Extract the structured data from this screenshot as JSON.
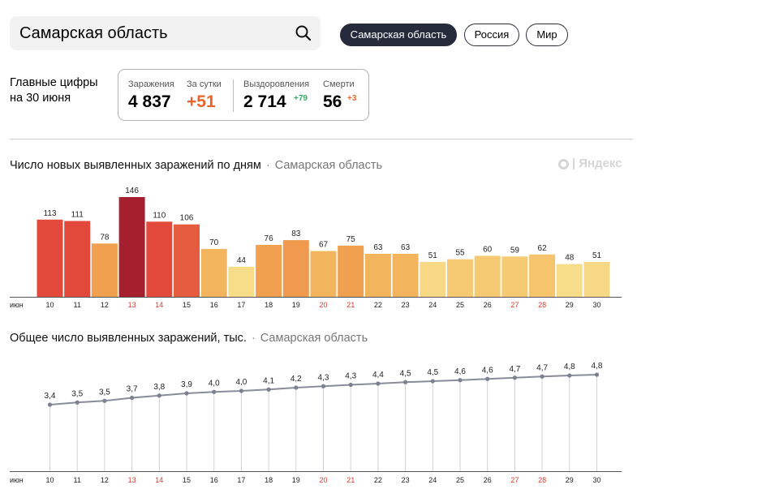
{
  "search": {
    "value": "Самарская область"
  },
  "regions": [
    {
      "label": "Самарская область",
      "active": true
    },
    {
      "label": "Россия",
      "active": false
    },
    {
      "label": "Мир",
      "active": false
    }
  ],
  "headline": {
    "line1": "Главные цифры",
    "line2": "на 30 июня"
  },
  "stats": {
    "infections_label": "Заражения",
    "infections_value": "4 837",
    "daily_label": "За сутки",
    "daily_value": "+51",
    "recovered_label": "Выздоровления",
    "recovered_value": "2 714",
    "recovered_delta": "+79",
    "deaths_label": "Смерти",
    "deaths_value": "56",
    "deaths_delta": "+3"
  },
  "watermark": "Яндекс",
  "colors": {
    "red_day": "#d93a2b",
    "recovered_delta": "#3aa66a",
    "orange": "#e8652a",
    "line": "#8a8d99"
  },
  "chart_data": [
    {
      "type": "bar",
      "title": "Число новых выявленных заражений по дням",
      "subtitle": "Самарская область",
      "month_label": "июн",
      "categories": [
        "10",
        "11",
        "12",
        "13",
        "14",
        "15",
        "16",
        "17",
        "18",
        "19",
        "20",
        "21",
        "22",
        "23",
        "24",
        "25",
        "26",
        "27",
        "28",
        "29",
        "30"
      ],
      "values": [
        113,
        111,
        78,
        146,
        110,
        106,
        70,
        44,
        76,
        83,
        67,
        75,
        63,
        63,
        51,
        55,
        60,
        59,
        62,
        48,
        51
      ],
      "highlight_days": [
        "13",
        "14",
        "20",
        "21",
        "27",
        "28"
      ],
      "bar_colors": [
        "#e3493a",
        "#e3493a",
        "#f0a04f",
        "#a61f2f",
        "#e3493a",
        "#e55c3e",
        "#f2b55e",
        "#f7dd8a",
        "#f0a04f",
        "#ef9a4f",
        "#f2b55e",
        "#f0a04f",
        "#f2b55e",
        "#f2b55e",
        "#f7d885",
        "#f5ca73",
        "#f5ca73",
        "#f5ca73",
        "#f5c46c",
        "#f7dd8a",
        "#f7d885"
      ],
      "ylim": [
        0,
        146
      ]
    },
    {
      "type": "line",
      "title": "Общее число выявленных заражений, тыс.",
      "subtitle": "Самарская область",
      "month_label": "июн",
      "categories": [
        "10",
        "11",
        "12",
        "13",
        "14",
        "15",
        "16",
        "17",
        "18",
        "19",
        "20",
        "21",
        "22",
        "23",
        "24",
        "25",
        "26",
        "27",
        "28",
        "29",
        "30"
      ],
      "values": [
        3.4,
        3.5,
        3.5,
        3.7,
        3.8,
        3.9,
        4.0,
        4.0,
        4.1,
        4.2,
        4.3,
        4.3,
        4.4,
        4.5,
        4.5,
        4.6,
        4.6,
        4.7,
        4.7,
        4.8,
        4.8
      ],
      "value_labels": [
        "3,4",
        "3,5",
        "3,5",
        "3,7",
        "3,8",
        "3,9",
        "4,0",
        "4,0",
        "4,1",
        "4,2",
        "4,3",
        "4,3",
        "4,4",
        "4,5",
        "4,5",
        "4,6",
        "4,6",
        "4,7",
        "4,7",
        "4,8",
        "4,8"
      ],
      "highlight_days": [
        "13",
        "14",
        "20",
        "21",
        "27",
        "28"
      ],
      "exact_values": [
        3.36,
        3.47,
        3.55,
        3.7,
        3.81,
        3.92,
        3.99,
        4.04,
        4.11,
        4.2,
        4.27,
        4.34,
        4.4,
        4.47,
        4.52,
        4.57,
        4.63,
        4.69,
        4.75,
        4.8,
        4.84
      ]
    }
  ]
}
